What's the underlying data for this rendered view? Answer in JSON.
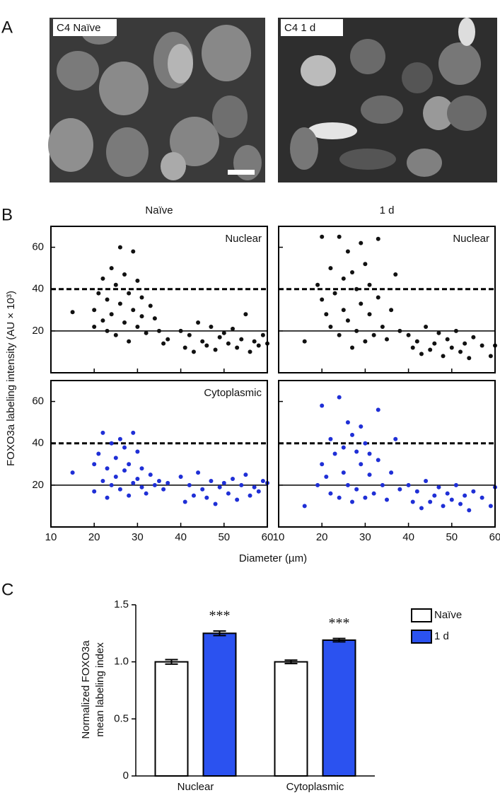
{
  "panels": {
    "a": "A",
    "b": "B",
    "c": "C"
  },
  "images": [
    {
      "label": "C4 Naïve"
    },
    {
      "label": "C4 1 d"
    }
  ],
  "panel_b": {
    "ylabel": "FOXO3a labeling intensity (AU × 10³)",
    "xlabel": "Diameter (µm)"
  },
  "chart_data": [
    {
      "type": "scatter",
      "title": "Naïve",
      "annotation": "Nuclear",
      "color": "#111111",
      "xlim": [
        10,
        60
      ],
      "ylim": [
        0,
        70
      ],
      "xticks": [
        10,
        20,
        30,
        40,
        50,
        60
      ],
      "yticks": [
        20,
        40,
        60
      ],
      "xtick_labels": false,
      "ytick_labels": true,
      "hlines": [
        {
          "value": 20,
          "style": "solid"
        },
        {
          "value": 40,
          "style": "dashed"
        }
      ],
      "x": [
        15,
        20,
        20,
        21,
        22,
        22,
        23,
        23,
        24,
        24,
        25,
        25,
        26,
        26,
        27,
        27,
        28,
        28,
        29,
        29,
        30,
        30,
        31,
        31,
        32,
        33,
        34,
        35,
        36,
        37,
        40,
        41,
        42,
        43,
        44,
        45,
        46,
        47,
        48,
        49,
        50,
        51,
        52,
        53,
        54,
        55,
        56,
        57,
        58,
        59,
        60
      ],
      "values": [
        29,
        30,
        22,
        38,
        45,
        25,
        35,
        20,
        50,
        28,
        42,
        18,
        60,
        33,
        24,
        47,
        15,
        38,
        30,
        58,
        22,
        44,
        27,
        36,
        19,
        32,
        26,
        20,
        14,
        16,
        20,
        12,
        18,
        10,
        24,
        15,
        13,
        22,
        11,
        17,
        19,
        14,
        21,
        12,
        16,
        28,
        10,
        15,
        13,
        18,
        14
      ]
    },
    {
      "type": "scatter",
      "title": "1 d",
      "annotation": "Nuclear",
      "color": "#111111",
      "xlim": [
        10,
        60
      ],
      "ylim": [
        0,
        70
      ],
      "xticks": [
        10,
        20,
        30,
        40,
        50,
        60
      ],
      "yticks": [
        20,
        40,
        60
      ],
      "xtick_labels": false,
      "ytick_labels": false,
      "hlines": [
        {
          "value": 20,
          "style": "solid"
        },
        {
          "value": 40,
          "style": "dashed"
        }
      ],
      "x": [
        16,
        19,
        20,
        20,
        21,
        22,
        22,
        23,
        24,
        24,
        25,
        25,
        26,
        26,
        27,
        27,
        28,
        28,
        29,
        29,
        30,
        30,
        31,
        31,
        32,
        33,
        33,
        34,
        35,
        36,
        37,
        38,
        40,
        41,
        42,
        43,
        44,
        45,
        46,
        47,
        48,
        49,
        50,
        51,
        52,
        53,
        54,
        55,
        57,
        59,
        60
      ],
      "values": [
        15,
        42,
        65,
        35,
        28,
        50,
        22,
        38,
        65,
        18,
        45,
        30,
        58,
        25,
        48,
        12,
        40,
        20,
        62,
        33,
        15,
        52,
        28,
        42,
        18,
        36,
        64,
        22,
        16,
        30,
        47,
        20,
        18,
        12,
        15,
        9,
        22,
        11,
        14,
        19,
        8,
        16,
        12,
        20,
        10,
        14,
        7,
        17,
        13,
        8,
        13
      ]
    },
    {
      "type": "scatter",
      "annotation": "Cytoplasmic",
      "color": "#1f2fd6",
      "xlim": [
        10,
        60
      ],
      "ylim": [
        0,
        70
      ],
      "xticks": [
        10,
        20,
        30,
        40,
        50,
        60
      ],
      "yticks": [
        20,
        40,
        60
      ],
      "xtick_labels": true,
      "ytick_labels": true,
      "hlines": [
        {
          "value": 20,
          "style": "solid"
        },
        {
          "value": 40,
          "style": "dashed"
        }
      ],
      "x": [
        15,
        20,
        20,
        21,
        22,
        22,
        23,
        23,
        24,
        24,
        25,
        25,
        26,
        26,
        27,
        27,
        28,
        28,
        29,
        29,
        30,
        30,
        31,
        31,
        32,
        33,
        34,
        35,
        36,
        37,
        40,
        41,
        42,
        43,
        44,
        45,
        46,
        47,
        48,
        49,
        50,
        51,
        52,
        53,
        54,
        55,
        56,
        57,
        58,
        59,
        60
      ],
      "values": [
        26,
        30,
        17,
        35,
        45,
        22,
        28,
        14,
        40,
        20,
        33,
        24,
        42,
        18,
        27,
        38,
        15,
        30,
        21,
        45,
        23,
        36,
        19,
        28,
        16,
        25,
        20,
        22,
        18,
        21,
        24,
        12,
        20,
        15,
        26,
        18,
        14,
        22,
        11,
        19,
        21,
        16,
        23,
        13,
        20,
        25,
        15,
        19,
        17,
        22,
        21
      ]
    },
    {
      "type": "scatter",
      "color": "#1f2fd6",
      "xlim": [
        10,
        60
      ],
      "ylim": [
        0,
        70
      ],
      "xticks": [
        10,
        20,
        30,
        40,
        50,
        60
      ],
      "yticks": [
        20,
        40,
        60
      ],
      "xtick_labels": true,
      "ytick_labels": false,
      "hlines": [
        {
          "value": 20,
          "style": "solid"
        },
        {
          "value": 40,
          "style": "dashed"
        }
      ],
      "x": [
        16,
        19,
        20,
        20,
        21,
        22,
        22,
        23,
        24,
        24,
        25,
        25,
        26,
        26,
        27,
        27,
        28,
        28,
        29,
        29,
        30,
        30,
        31,
        31,
        32,
        33,
        33,
        34,
        35,
        36,
        37,
        38,
        40,
        41,
        42,
        43,
        44,
        45,
        46,
        47,
        48,
        49,
        50,
        51,
        52,
        53,
        54,
        55,
        57,
        59,
        60
      ],
      "values": [
        10,
        20,
        58,
        30,
        24,
        42,
        16,
        35,
        62,
        14,
        38,
        26,
        50,
        20,
        44,
        12,
        36,
        18,
        48,
        30,
        14,
        40,
        25,
        35,
        16,
        32,
        56,
        20,
        13,
        26,
        42,
        18,
        20,
        12,
        17,
        9,
        22,
        12,
        15,
        19,
        10,
        16,
        13,
        20,
        11,
        15,
        8,
        17,
        14,
        10,
        19
      ]
    },
    {
      "type": "bar",
      "ylabel": [
        "Normalized FOXO3a",
        "mean labeling index"
      ],
      "categories": [
        "Nuclear",
        "Cytoplasmic"
      ],
      "ylim": [
        0,
        1.5
      ],
      "yticks": [
        0,
        0.5,
        {
          "value": 1,
          "label": "1.0"
        },
        1.5
      ],
      "series": [
        {
          "name": "Naïve",
          "color": "#ffffff",
          "values": [
            1.0,
            1.0
          ],
          "errors": [
            0.02,
            0.015
          ]
        },
        {
          "name": "1 d",
          "color": "#2b52f0",
          "values": [
            1.25,
            1.19
          ],
          "errors": [
            0.02,
            0.015
          ],
          "annotations": [
            "***",
            "***"
          ]
        }
      ]
    }
  ]
}
